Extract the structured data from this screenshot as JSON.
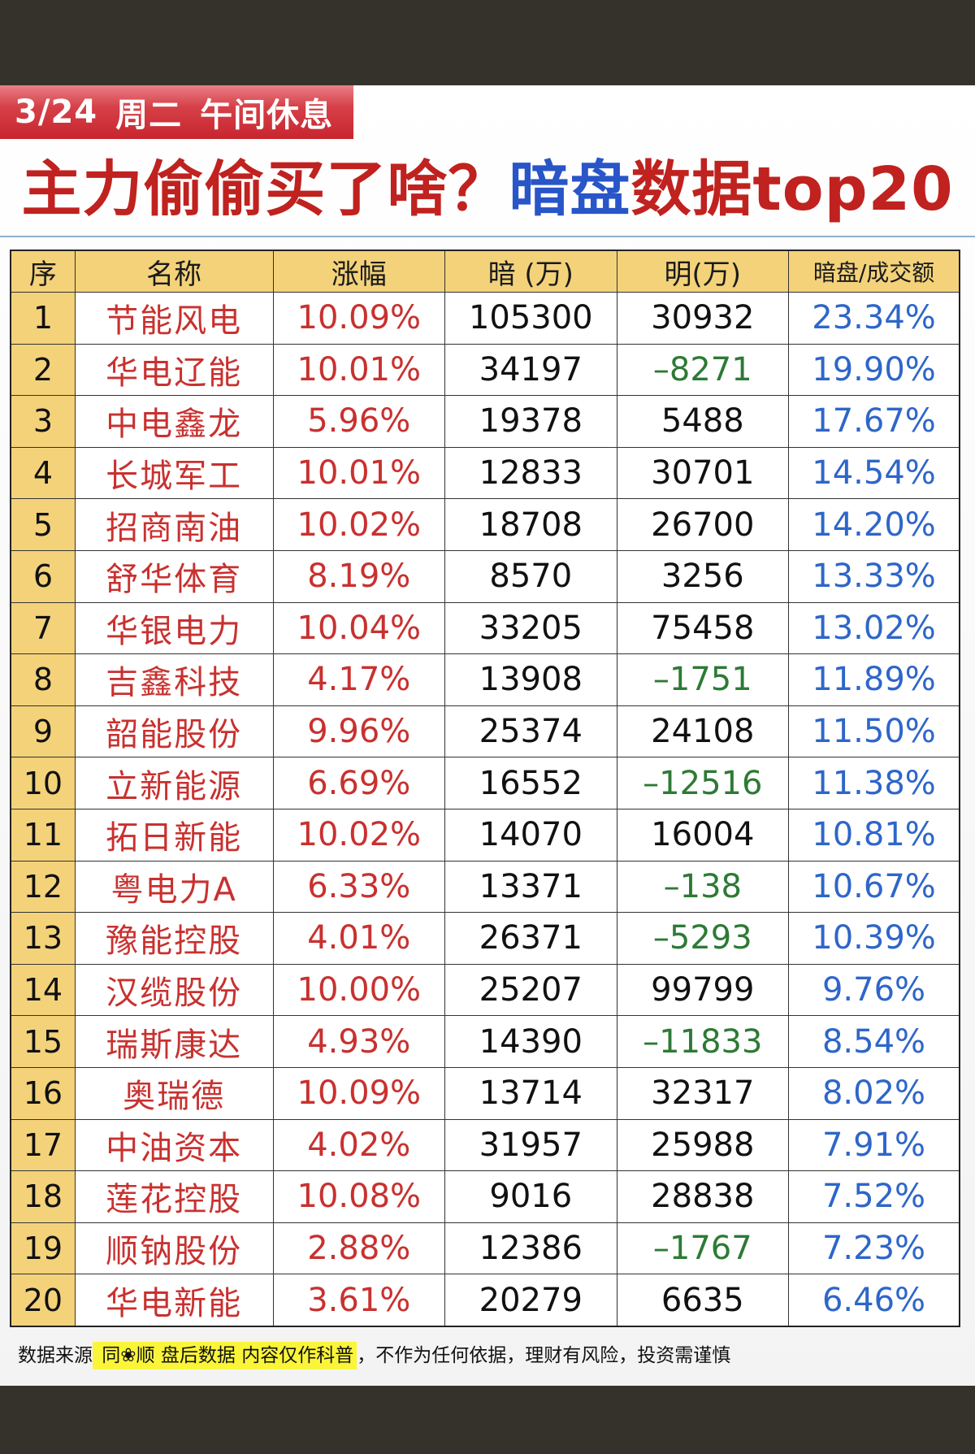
{
  "header": {
    "date": "3/24",
    "weekday": "周二",
    "session": "午间休息",
    "title_part1": "主力偷偷买了啥？",
    "title_part2_blue": "暗盘",
    "title_part3": "数据top20"
  },
  "table": {
    "columns": [
      "序",
      "名称",
      "涨幅",
      "暗 (万)",
      "明(万)",
      "暗盘/成交额"
    ],
    "rows": [
      {
        "idx": "1",
        "name": "节能风电",
        "change": "10.09%",
        "dark": "105300",
        "lit": "30932",
        "ratio": "23.34%"
      },
      {
        "idx": "2",
        "name": "华电辽能",
        "change": "10.01%",
        "dark": "34197",
        "lit": "–8271",
        "ratio": "19.90%"
      },
      {
        "idx": "3",
        "name": "中电鑫龙",
        "change": "5.96%",
        "dark": "19378",
        "lit": "5488",
        "ratio": "17.67%"
      },
      {
        "idx": "4",
        "name": "长城军工",
        "change": "10.01%",
        "dark": "12833",
        "lit": "30701",
        "ratio": "14.54%"
      },
      {
        "idx": "5",
        "name": "招商南油",
        "change": "10.02%",
        "dark": "18708",
        "lit": "26700",
        "ratio": "14.20%"
      },
      {
        "idx": "6",
        "name": "舒华体育",
        "change": "8.19%",
        "dark": "8570",
        "lit": "3256",
        "ratio": "13.33%"
      },
      {
        "idx": "7",
        "name": "华银电力",
        "change": "10.04%",
        "dark": "33205",
        "lit": "75458",
        "ratio": "13.02%"
      },
      {
        "idx": "8",
        "name": "吉鑫科技",
        "change": "4.17%",
        "dark": "13908",
        "lit": "–1751",
        "ratio": "11.89%"
      },
      {
        "idx": "9",
        "name": "韶能股份",
        "change": "9.96%",
        "dark": "25374",
        "lit": "24108",
        "ratio": "11.50%"
      },
      {
        "idx": "10",
        "name": "立新能源",
        "change": "6.69%",
        "dark": "16552",
        "lit": "–12516",
        "ratio": "11.38%"
      },
      {
        "idx": "11",
        "name": "拓日新能",
        "change": "10.02%",
        "dark": "14070",
        "lit": "16004",
        "ratio": "10.81%"
      },
      {
        "idx": "12",
        "name": "粤电力A",
        "change": "6.33%",
        "dark": "13371",
        "lit": "–138",
        "ratio": "10.67%"
      },
      {
        "idx": "13",
        "name": "豫能控股",
        "change": "4.01%",
        "dark": "26371",
        "lit": "–5293",
        "ratio": "10.39%"
      },
      {
        "idx": "14",
        "name": "汉缆股份",
        "change": "10.00%",
        "dark": "25207",
        "lit": "99799",
        "ratio": "9.76%"
      },
      {
        "idx": "15",
        "name": "瑞斯康达",
        "change": "4.93%",
        "dark": "14390",
        "lit": "–11833",
        "ratio": "8.54%"
      },
      {
        "idx": "16",
        "name": "奥瑞德",
        "change": "10.09%",
        "dark": "13714",
        "lit": "32317",
        "ratio": "8.02%"
      },
      {
        "idx": "17",
        "name": "中油资本",
        "change": "4.02%",
        "dark": "31957",
        "lit": "25988",
        "ratio": "7.91%"
      },
      {
        "idx": "18",
        "name": "莲花控股",
        "change": "10.08%",
        "dark": "9016",
        "lit": "28838",
        "ratio": "7.52%"
      },
      {
        "idx": "19",
        "name": "顺钠股份",
        "change": "2.88%",
        "dark": "12386",
        "lit": "–1767",
        "ratio": "7.23%"
      },
      {
        "idx": "20",
        "name": "华电新能",
        "change": "3.61%",
        "dark": "20279",
        "lit": "6635",
        "ratio": "6.46%"
      }
    ]
  },
  "footer": {
    "prefix": "数据来源",
    "highlight": " 同❀顺  盘后数据  内容仅作科普",
    "suffix": "，不作为任何依据，理财有风险，投资需谨慎"
  },
  "colors": {
    "badge_red": "#d64048",
    "title_red": "#c0221f",
    "title_blue": "#2855c8",
    "header_yellow": "#f3d27a",
    "up_red": "#c8312f",
    "negative_green": "#2d7a35",
    "ratio_blue": "#2e66c9",
    "highlight_yellow": "#fbf53a",
    "frame_dark": "#35322c"
  }
}
